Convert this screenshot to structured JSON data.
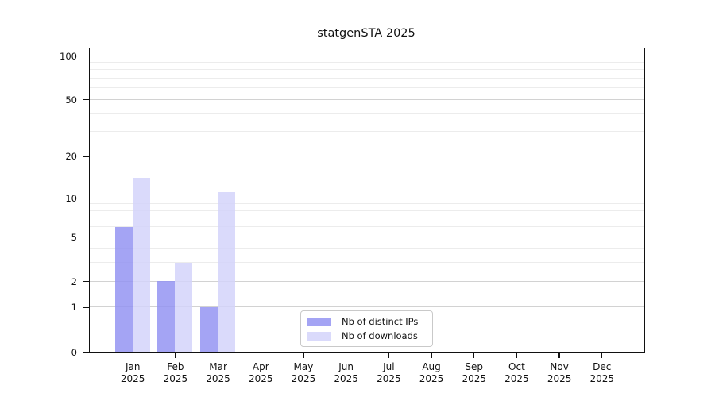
{
  "chart_data": {
    "type": "bar",
    "title": "statgenSTA 2025",
    "categories": [
      "Jan",
      "Feb",
      "Mar",
      "Apr",
      "May",
      "Jun",
      "Jul",
      "Aug",
      "Sep",
      "Oct",
      "Nov",
      "Dec"
    ],
    "category_year": "2025",
    "series": [
      {
        "name": "Nb of distinct IPs",
        "color": "#9b9bf2",
        "css": "rgba(148,148,242,0.85)",
        "values": [
          6,
          2,
          1,
          0,
          0,
          0,
          0,
          0,
          0,
          0,
          0,
          0
        ]
      },
      {
        "name": "Nb of downloads",
        "color": "#d9d9f9",
        "css": "rgba(212,212,250,0.85)",
        "values": [
          14,
          3,
          11,
          0,
          0,
          0,
          0,
          0,
          0,
          0,
          0,
          0
        ]
      }
    ],
    "xlabel": "",
    "ylabel": "",
    "y_axis": {
      "scale": "log10(1+v)",
      "major_ticks": [
        0,
        1,
        2,
        5,
        10,
        20,
        50,
        100
      ],
      "minor_gridlines": [
        3,
        4,
        6,
        7,
        8,
        9,
        30,
        40,
        60,
        70,
        80,
        90
      ],
      "ylim": [
        0,
        112
      ]
    },
    "grid": {
      "orientation": "horizontal",
      "major_color": "#d2d2d2",
      "minor_color": "#ececec"
    },
    "legend_position": "inside-bottom-center"
  }
}
